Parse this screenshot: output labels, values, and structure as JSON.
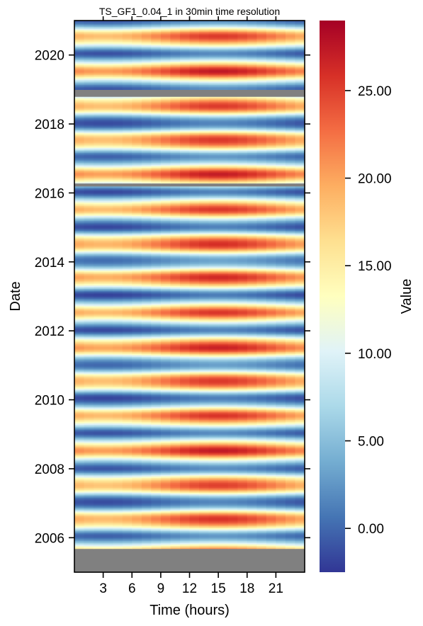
{
  "chart_data": {
    "type": "heatmap",
    "title": "TS_GF1_0.04_1 in 30min time resolution",
    "xlabel": "Time (hours)",
    "ylabel": "Date",
    "colorbar_label": "Value",
    "x_ticks": [
      3,
      6,
      9,
      12,
      15,
      18,
      21
    ],
    "x_tick_labels": [
      "3",
      "6",
      "9",
      "12",
      "15",
      "18",
      "21"
    ],
    "xlim": [
      0,
      24
    ],
    "y_ticks": [
      2006,
      2008,
      2010,
      2012,
      2014,
      2016,
      2018,
      2020
    ],
    "y_tick_labels": [
      "2006",
      "2008",
      "2010",
      "2012",
      "2014",
      "2016",
      "2018",
      "2020"
    ],
    "ylim": [
      2005.0,
      2021.0
    ],
    "colorbar_ticks": [
      0,
      5,
      10,
      15,
      20,
      25
    ],
    "colorbar_tick_labels": [
      "0.00",
      "5.00",
      "10.00",
      "15.00",
      "20.00",
      "25.00"
    ],
    "colorbar_range": [
      -2.5,
      29
    ],
    "colormap": "RdYlBu_r",
    "missing_color": "#808080",
    "missing_periods": [
      [
        2005.0,
        2005.7
      ],
      [
        2018.8,
        2019.0
      ],
      [
        2016.2,
        2016.3
      ]
    ],
    "value_model": {
      "annual_mean": 11.5,
      "annual_amplitude": 11.0,
      "diurnal_amplitude": 2.5,
      "peak_hour": 15
    }
  }
}
